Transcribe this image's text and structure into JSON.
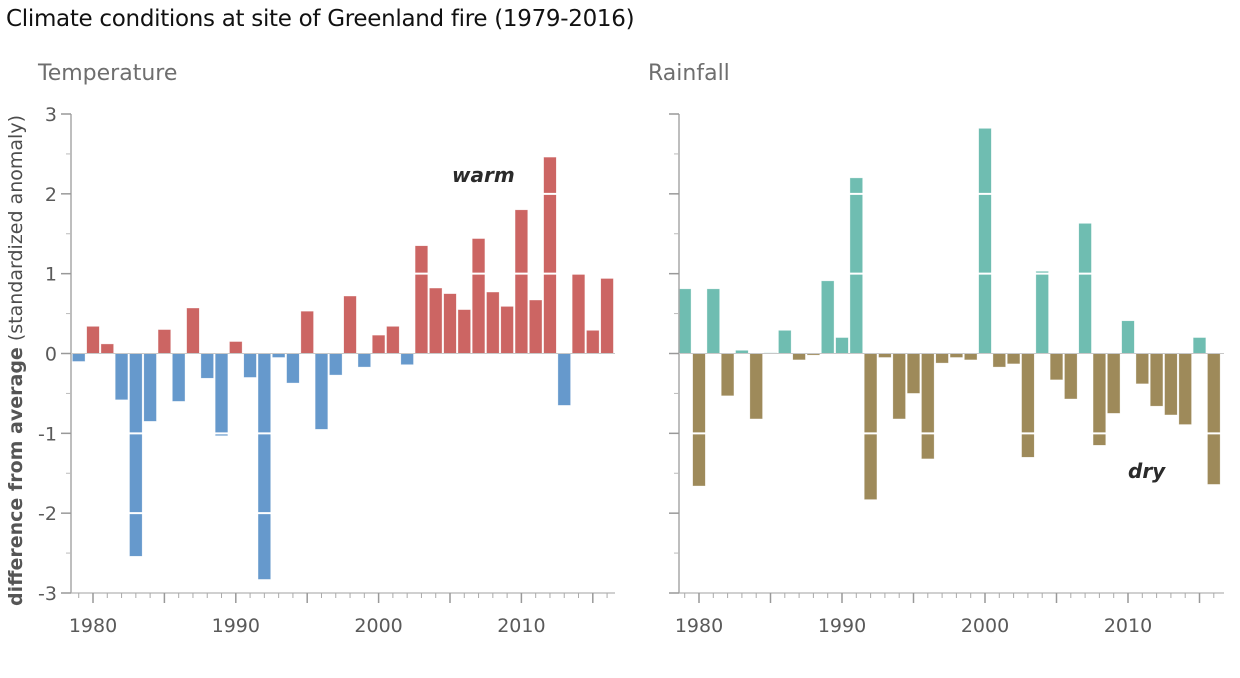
{
  "title": "Climate conditions at site of Greenland fire (1979-2016)",
  "chart_data": [
    {
      "type": "bar",
      "panel": "left",
      "title": "Temperature",
      "xlabel": "",
      "ylabel_bold": "difference from average",
      "ylabel_rest": " (standardized anomaly)",
      "ylim": [
        -3,
        3
      ],
      "yticks": [
        3,
        2,
        1,
        0,
        -1,
        -2,
        -3
      ],
      "xtick_labels": [
        "1980",
        "1990",
        "2000",
        "2010"
      ],
      "xtick_years": [
        1980,
        1990,
        2000,
        2010
      ],
      "annotation": "warm",
      "positive_color": "#cc6563",
      "negative_color": "#6699cc",
      "categories": [
        1979,
        1980,
        1981,
        1982,
        1983,
        1984,
        1985,
        1986,
        1987,
        1988,
        1989,
        1990,
        1991,
        1992,
        1993,
        1994,
        1995,
        1996,
        1997,
        1998,
        1999,
        2000,
        2001,
        2002,
        2003,
        2004,
        2005,
        2006,
        2007,
        2008,
        2009,
        2010,
        2011,
        2012,
        2013,
        2014,
        2015,
        2016
      ],
      "values": [
        -0.1,
        0.34,
        0.12,
        -0.58,
        -2.54,
        -0.85,
        0.3,
        -0.6,
        0.57,
        -0.31,
        -1.03,
        0.15,
        -0.3,
        -2.83,
        -0.05,
        -0.37,
        0.53,
        -0.95,
        -0.27,
        0.72,
        -0.17,
        0.23,
        0.34,
        -0.14,
        1.35,
        0.82,
        0.75,
        0.55,
        1.44,
        0.77,
        0.59,
        1.8,
        0.67,
        2.46,
        -0.65,
        1.0,
        0.29,
        0.94
      ],
      "grid": false
    },
    {
      "type": "bar",
      "panel": "right",
      "title": "Rainfall",
      "xlabel": "",
      "ylabel": "",
      "ylim": [
        -3,
        3
      ],
      "xtick_labels": [
        "1980",
        "1990",
        "2000",
        "2010"
      ],
      "xtick_years": [
        1980,
        1990,
        2000,
        2010
      ],
      "annotation": "dry",
      "positive_color": "#6fbdb1",
      "negative_color": "#9e8a5a",
      "categories": [
        1979,
        1980,
        1981,
        1982,
        1983,
        1984,
        1985,
        1986,
        1987,
        1988,
        1989,
        1990,
        1991,
        1992,
        1993,
        1994,
        1995,
        1996,
        1997,
        1998,
        1999,
        2000,
        2001,
        2002,
        2003,
        2004,
        2005,
        2006,
        2007,
        2008,
        2009,
        2010,
        2011,
        2012,
        2013,
        2014,
        2015,
        2016
      ],
      "values": [
        0.81,
        -1.66,
        0.81,
        -0.53,
        0.04,
        -0.82,
        0.01,
        0.29,
        -0.08,
        -0.02,
        0.91,
        0.2,
        2.2,
        -1.83,
        -0.05,
        -0.82,
        -0.5,
        -1.32,
        -0.12,
        -0.05,
        -0.08,
        2.82,
        -0.17,
        -0.13,
        -1.3,
        1.03,
        -0.33,
        -0.57,
        1.63,
        -1.15,
        -0.75,
        0.41,
        -0.38,
        -0.66,
        -0.77,
        -0.89,
        0.2,
        -1.64
      ],
      "grid": false
    }
  ]
}
